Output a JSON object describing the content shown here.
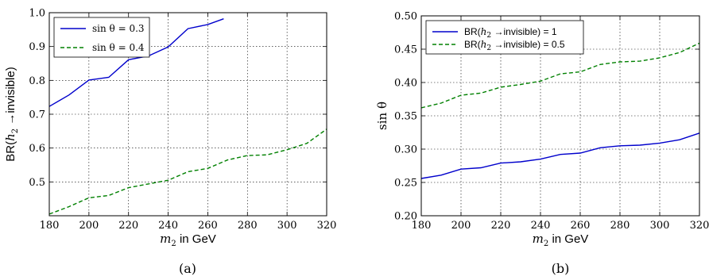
{
  "chart_data": [
    {
      "type": "line",
      "panel_label": "(a)",
      "xlabel": {
        "math": "m",
        "sub": "2",
        "rest": " in GeV"
      },
      "ylabel": {
        "pre": "BR(",
        "math": "h",
        "sub": "2",
        "post": " →invisible)"
      },
      "xlim": [
        180,
        320
      ],
      "ylim": [
        0.4,
        1.0
      ],
      "xticks": [
        180,
        200,
        220,
        240,
        260,
        280,
        300,
        320
      ],
      "yticks": [
        0.5,
        0.6,
        0.7,
        0.8,
        0.9,
        1.0
      ],
      "ytick_labels": [
        "0.5",
        "0.6",
        "0.7",
        "0.8",
        "0.9",
        "1.0"
      ],
      "grid": true,
      "legend_position": "upper-left",
      "series": [
        {
          "name": "sin θ = 0.3",
          "color": "#0000cc",
          "style": "solid",
          "x": [
            180,
            190,
            200,
            210,
            220,
            230,
            240,
            250,
            260,
            268
          ],
          "y": [
            0.723,
            0.757,
            0.801,
            0.809,
            0.861,
            0.872,
            0.899,
            0.953,
            0.965,
            0.982
          ]
        },
        {
          "name": "sin θ = 0.4",
          "color": "#008000",
          "style": "dashed",
          "x": [
            180,
            190,
            200,
            210,
            220,
            230,
            240,
            250,
            260,
            270,
            280,
            290,
            300,
            310,
            320
          ],
          "y": [
            0.405,
            0.427,
            0.453,
            0.46,
            0.483,
            0.494,
            0.505,
            0.53,
            0.54,
            0.565,
            0.578,
            0.58,
            0.595,
            0.614,
            0.656
          ]
        }
      ]
    },
    {
      "type": "line",
      "panel_label": "(b)",
      "xlabel": {
        "math": "m",
        "sub": "2",
        "rest": " in GeV"
      },
      "ylabel": {
        "text": "sin θ"
      },
      "xlim": [
        180,
        320
      ],
      "ylim": [
        0.2,
        0.5
      ],
      "xticks": [
        180,
        200,
        220,
        240,
        260,
        280,
        300,
        320
      ],
      "yticks": [
        0.2,
        0.25,
        0.3,
        0.35,
        0.4,
        0.45,
        0.5
      ],
      "ytick_labels": [
        "0.20",
        "0.25",
        "0.30",
        "0.35",
        "0.40",
        "0.45",
        "0.50"
      ],
      "grid": true,
      "legend_position": "upper-left",
      "series": [
        {
          "name_pre": "BR(",
          "name_math": "h",
          "name_sub": "2",
          "name_post": " →invisible) = 1",
          "color": "#0000cc",
          "style": "solid",
          "x": [
            180,
            190,
            200,
            210,
            220,
            230,
            240,
            250,
            260,
            270,
            280,
            290,
            300,
            310,
            320
          ],
          "y": [
            0.256,
            0.261,
            0.27,
            0.272,
            0.279,
            0.281,
            0.285,
            0.292,
            0.294,
            0.302,
            0.305,
            0.306,
            0.309,
            0.314,
            0.324
          ]
        },
        {
          "name_pre": "BR(",
          "name_math": "h",
          "name_sub": "2",
          "name_post": " →invisible) = 0.5",
          "color": "#008000",
          "style": "dashed",
          "x": [
            180,
            190,
            200,
            210,
            220,
            230,
            240,
            250,
            260,
            270,
            280,
            290,
            300,
            310,
            320
          ],
          "y": [
            0.362,
            0.369,
            0.381,
            0.384,
            0.393,
            0.397,
            0.402,
            0.413,
            0.416,
            0.427,
            0.431,
            0.432,
            0.437,
            0.445,
            0.459
          ]
        }
      ]
    }
  ]
}
